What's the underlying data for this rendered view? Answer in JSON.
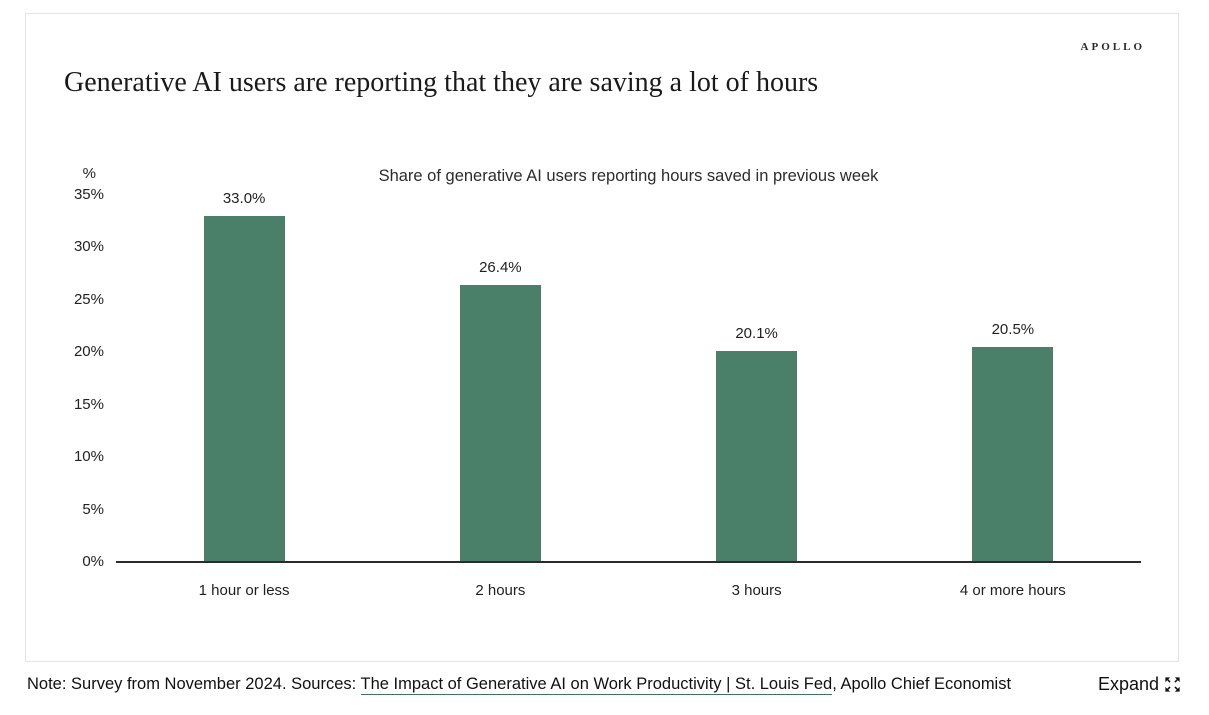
{
  "brand": {
    "logo_text": "APOLLO"
  },
  "header": {
    "title": "Generative AI users are reporting that they are saving a lot of hours"
  },
  "chart_data": {
    "type": "bar",
    "title": "Share of generative AI users reporting hours saved in previous week",
    "unit_label": "%",
    "categories": [
      "1 hour or less",
      "2 hours",
      "3 hours",
      "4 or more hours"
    ],
    "values": [
      33.0,
      26.4,
      20.1,
      20.5
    ],
    "value_labels": [
      "33.0%",
      "26.4%",
      "20.1%",
      "20.5%"
    ],
    "ylim": [
      0,
      35
    ],
    "ytick_step": 5,
    "ytick_labels": [
      "0%",
      "5%",
      "10%",
      "15%",
      "20%",
      "25%",
      "30%",
      "35%"
    ],
    "bar_color": "#4a806a",
    "grid": false,
    "legend_position": "none"
  },
  "footer": {
    "note_prefix": "Note: Survey from November 2024. Sources: ",
    "link_text": "The Impact of Generative AI on Work Productivity | St. Louis Fed",
    "note_suffix": ", Apollo Chief Economist",
    "expand_label": "Expand",
    "link_underline_color": "#44705d"
  }
}
